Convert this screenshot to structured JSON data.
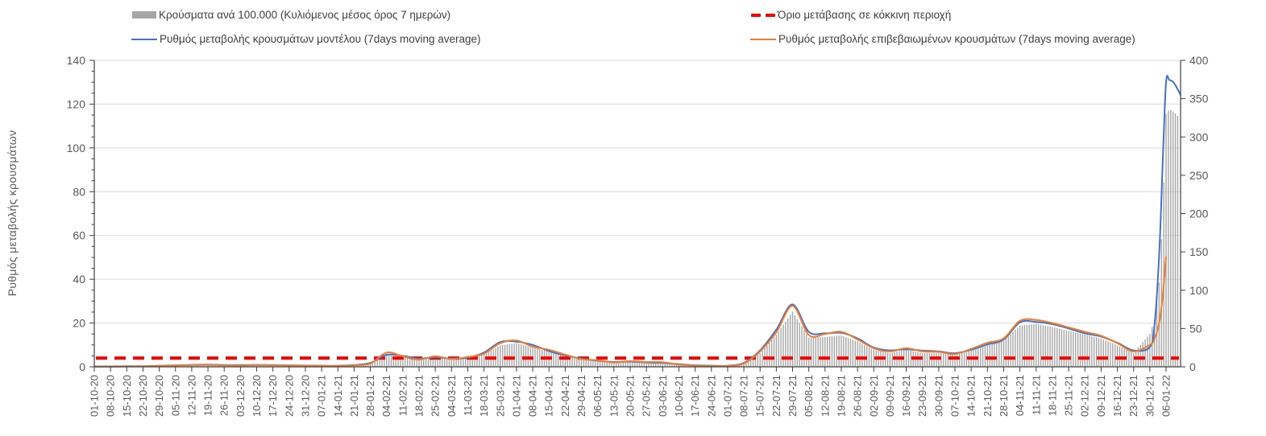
{
  "chart_data": {
    "type": "combo-bar-line",
    "y_left": {
      "label": "Ρυθμός μεταβολής κρουσμάτων",
      "min": 0,
      "max": 140,
      "major_step": 20,
      "minor_step": 5
    },
    "y_right": {
      "min": 0,
      "max": 400,
      "major_step": 50
    },
    "x_labels": [
      "01-10-20",
      "08-10-20",
      "15-10-20",
      "22-10-20",
      "29-10-20",
      "05-11-20",
      "12-11-20",
      "19-11-20",
      "26-11-20",
      "03-12-20",
      "10-12-20",
      "17-12-20",
      "24-12-20",
      "31-12-20",
      "07-01-21",
      "14-01-21",
      "21-01-21",
      "28-01-21",
      "04-02-21",
      "11-02-21",
      "18-02-21",
      "25-02-21",
      "04-03-21",
      "11-03-21",
      "18-03-21",
      "25-03-21",
      "01-04-21",
      "08-04-21",
      "15-04-21",
      "22-04-21",
      "29-04-21",
      "06-05-21",
      "13-05-21",
      "20-05-21",
      "27-05-21",
      "03-06-21",
      "10-06-21",
      "17-06-21",
      "24-06-21",
      "01-07-21",
      "08-07-21",
      "15-07-21",
      "22-07-21",
      "29-07-21",
      "05-08-21",
      "12-08-21",
      "19-08-21",
      "26-08-21",
      "02-09-21",
      "09-09-21",
      "16-09-21",
      "23-09-21",
      "30-09-21",
      "07-10-21",
      "14-10-21",
      "21-10-21",
      "28-10-21",
      "04-11-21",
      "11-11-21",
      "18-11-21",
      "25-11-21",
      "02-12-21",
      "09-12-21",
      "16-12-21",
      "23-12-21",
      "30-12-21",
      "06-01-22"
    ],
    "bars": {
      "label": "Κρούσματα ανά 100.000 (Κυλιόμενος μέσος όρος 7 ημερών)",
      "axis": "right",
      "color": "#a6a6a6",
      "weekly_values": [
        0,
        0,
        0,
        1,
        1,
        2,
        2,
        3,
        2,
        2,
        2,
        2,
        2,
        1,
        1,
        1,
        2,
        4,
        15,
        14,
        9,
        12,
        10,
        12,
        16,
        28,
        31,
        25,
        20,
        14,
        9,
        8,
        5,
        7,
        6,
        5,
        3,
        1,
        1,
        1,
        4,
        18,
        42,
        72,
        38,
        39,
        41,
        33,
        22,
        18,
        22,
        18,
        18,
        15,
        21,
        28,
        34,
        54,
        56,
        52,
        47,
        42,
        37,
        28,
        18,
        43,
        330
      ]
    },
    "series": [
      {
        "label": "Ρυθμός μεταβολής κρουσμάτων μοντέλου (7days moving average)",
        "axis": "left",
        "color": "#4472c4",
        "weekly_values": [
          0.2,
          0.2,
          0.3,
          0.3,
          0.5,
          0.7,
          0.9,
          1.0,
          0.8,
          0.8,
          0.9,
          0.8,
          0.7,
          0.6,
          0.5,
          0.5,
          0.8,
          1.8,
          5.5,
          5.0,
          3.8,
          4.3,
          3.8,
          4.2,
          6.5,
          11.3,
          11.5,
          10.0,
          7.2,
          5.2,
          3.8,
          2.8,
          2.2,
          2.4,
          2.0,
          1.8,
          1.2,
          0.7,
          0.5,
          0.5,
          1.8,
          7.5,
          17.0,
          28.5,
          16.0,
          15.3,
          15.5,
          13.0,
          8.8,
          7.5,
          8.0,
          7.4,
          7.0,
          6.2,
          7.8,
          10.2,
          12.5,
          20.3,
          20.5,
          19.5,
          17.5,
          15.3,
          13.8,
          11.0,
          7.5,
          9.0,
          130
        ]
      },
      {
        "label": "Ρυθμός μεταβολής επιβεβαιωμένων κρουσμάτων (7days moving average)",
        "axis": "left",
        "color": "#ed7d31",
        "weekly_values": [
          0.1,
          0.1,
          0.2,
          0.2,
          0.4,
          0.6,
          0.8,
          0.9,
          0.7,
          0.6,
          0.8,
          0.7,
          0.6,
          0.5,
          0.4,
          0.4,
          0.7,
          1.5,
          6.5,
          4.8,
          3.3,
          4.8,
          3.6,
          4.5,
          6.0,
          10.8,
          12.0,
          9.2,
          7.8,
          5.6,
          3.5,
          3.0,
          2.0,
          2.6,
          2.2,
          2.1,
          1.0,
          0.5,
          0.3,
          0.4,
          1.5,
          7.0,
          15.8,
          27.8,
          14.5,
          15.0,
          16.0,
          12.5,
          8.5,
          7.0,
          8.5,
          7.0,
          6.8,
          5.8,
          8.2,
          11.0,
          13.0,
          21.0,
          21.4,
          20.0,
          18.0,
          16.0,
          14.2,
          10.8,
          7.0,
          10.0,
          50.5
        ]
      }
    ],
    "extra_points": [
      {
        "week_x": 65.3,
        "model": 20,
        "confirmed": 13,
        "bars": 62
      },
      {
        "week_x": 65.6,
        "model": 55,
        "confirmed": 21,
        "bars": 115
      },
      {
        "week_x": 65.8,
        "model": 95,
        "confirmed": 33,
        "bars": 205
      },
      {
        "week_x": 66.2,
        "model": 131,
        "bars": 336
      },
      {
        "week_x": 66.45,
        "model": 130,
        "bars": 333
      },
      {
        "week_x": 66.7,
        "model": 127,
        "bars": 328
      },
      {
        "week_x": 66.9,
        "model": 124,
        "bars": 321
      }
    ],
    "threshold": {
      "label": "Όριο μετάβασης σε κόκκινη περιοχή",
      "value_left_axis": 4,
      "color": "#ff0000"
    },
    "grid": "horizontal",
    "legend_position": "top"
  },
  "colors": {
    "axis": "#404040",
    "grid": "#d9d9d9",
    "tick_text": "#595959",
    "legend_text": "#3f3f3f"
  }
}
